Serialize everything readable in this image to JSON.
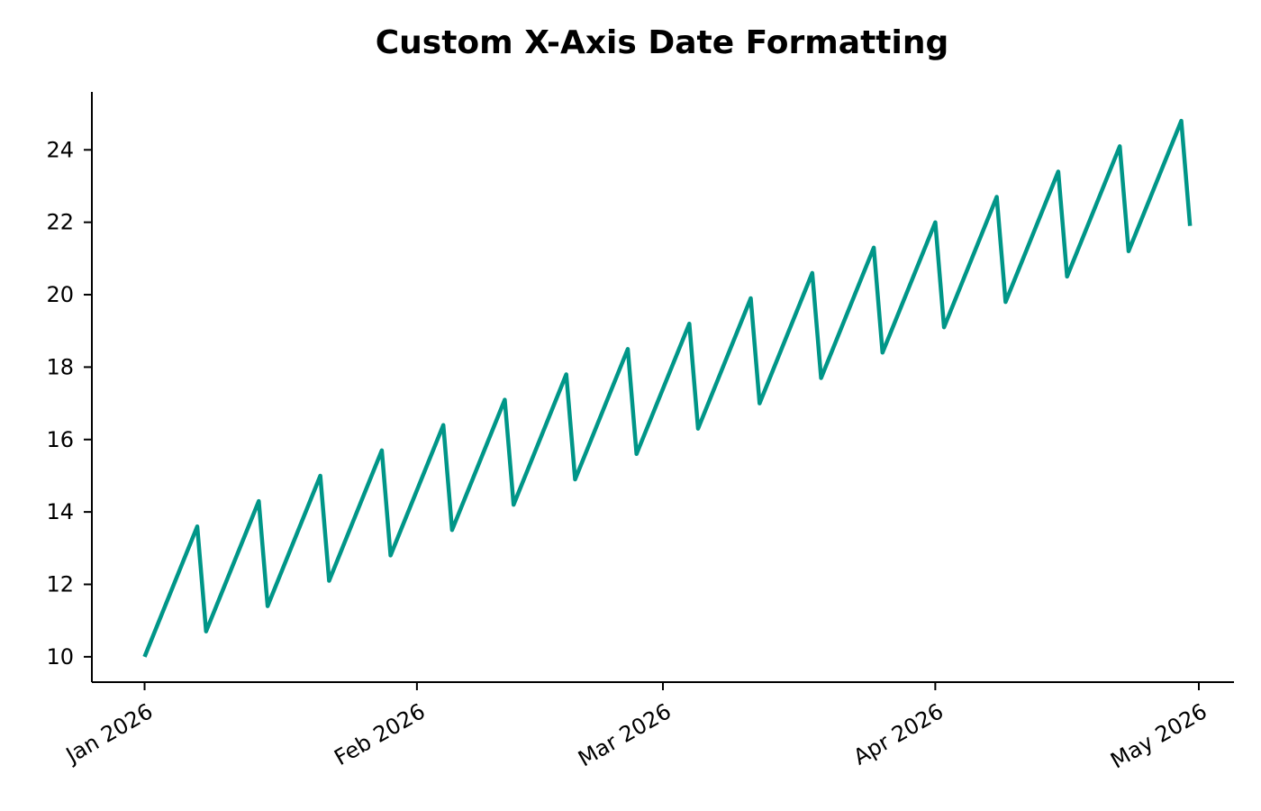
{
  "chart_data": {
    "type": "line",
    "title": "Custom X-Axis Date Formatting",
    "xlabel": "",
    "ylabel": "",
    "x_axis_type": "date",
    "x_ticks": [
      {
        "date": "2026-01-01",
        "label": "Jan 2026"
      },
      {
        "date": "2026-02-01",
        "label": "Feb 2026"
      },
      {
        "date": "2026-03-01",
        "label": "Mar 2026"
      },
      {
        "date": "2026-04-01",
        "label": "Apr 2026"
      },
      {
        "date": "2026-05-01",
        "label": "May 2026"
      }
    ],
    "y_ticks": [
      10,
      12,
      14,
      16,
      18,
      20,
      22,
      24
    ],
    "xlim": [
      "2025-12-26",
      "2026-05-05"
    ],
    "ylim": [
      9.3,
      25.6
    ],
    "grid": false,
    "legend": "none",
    "series": [
      {
        "color": "#009688",
        "points": [
          {
            "x": "2026-01-01",
            "y": 10.0
          },
          {
            "x": "2026-01-07",
            "y": 13.6
          },
          {
            "x": "2026-01-08",
            "y": 10.7
          },
          {
            "x": "2026-01-14",
            "y": 14.3
          },
          {
            "x": "2026-01-15",
            "y": 11.4
          },
          {
            "x": "2026-01-21",
            "y": 15.0
          },
          {
            "x": "2026-01-22",
            "y": 12.1
          },
          {
            "x": "2026-01-28",
            "y": 15.7
          },
          {
            "x": "2026-01-29",
            "y": 12.8
          },
          {
            "x": "2026-02-04",
            "y": 16.4
          },
          {
            "x": "2026-02-05",
            "y": 13.5
          },
          {
            "x": "2026-02-11",
            "y": 17.1
          },
          {
            "x": "2026-02-12",
            "y": 14.2
          },
          {
            "x": "2026-02-18",
            "y": 17.8
          },
          {
            "x": "2026-02-19",
            "y": 14.9
          },
          {
            "x": "2026-02-25",
            "y": 18.5
          },
          {
            "x": "2026-02-26",
            "y": 15.6
          },
          {
            "x": "2026-03-04",
            "y": 19.2
          },
          {
            "x": "2026-03-05",
            "y": 16.3
          },
          {
            "x": "2026-03-11",
            "y": 19.9
          },
          {
            "x": "2026-03-12",
            "y": 17.0
          },
          {
            "x": "2026-03-18",
            "y": 20.6
          },
          {
            "x": "2026-03-19",
            "y": 17.7
          },
          {
            "x": "2026-03-25",
            "y": 21.3
          },
          {
            "x": "2026-03-26",
            "y": 18.4
          },
          {
            "x": "2026-04-01",
            "y": 22.0
          },
          {
            "x": "2026-04-02",
            "y": 19.1
          },
          {
            "x": "2026-04-08",
            "y": 22.7
          },
          {
            "x": "2026-04-09",
            "y": 19.8
          },
          {
            "x": "2026-04-15",
            "y": 23.4
          },
          {
            "x": "2026-04-16",
            "y": 20.5
          },
          {
            "x": "2026-04-22",
            "y": 24.1
          },
          {
            "x": "2026-04-23",
            "y": 21.2
          },
          {
            "x": "2026-04-29",
            "y": 24.8
          },
          {
            "x": "2026-04-30",
            "y": 21.9
          }
        ]
      }
    ]
  }
}
